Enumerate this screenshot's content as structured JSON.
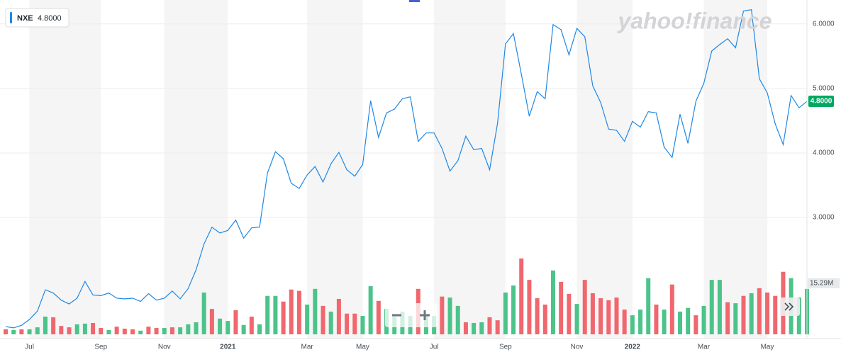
{
  "chart_data": {
    "type": "line",
    "watermark": "yahoo!finance",
    "categories": [
      null,
      null,
      null,
      "Jul",
      null,
      null,
      null,
      null,
      null,
      null,
      null,
      null,
      "Sep",
      null,
      null,
      null,
      null,
      null,
      null,
      null,
      "Nov",
      null,
      null,
      null,
      null,
      null,
      null,
      null,
      "2021",
      null,
      null,
      null,
      null,
      null,
      null,
      null,
      null,
      null,
      "Mar",
      null,
      null,
      null,
      null,
      null,
      null,
      "May",
      null,
      null,
      null,
      null,
      null,
      null,
      null,
      null,
      "Jul",
      null,
      null,
      null,
      null,
      null,
      null,
      null,
      null,
      "Sep",
      null,
      null,
      null,
      null,
      null,
      null,
      null,
      null,
      "Nov",
      null,
      null,
      null,
      null,
      null,
      null,
      "2022",
      null,
      null,
      null,
      null,
      null,
      null,
      null,
      null,
      "Mar",
      null,
      null,
      null,
      null,
      null,
      null,
      null,
      "May",
      null,
      null,
      null,
      null,
      null
    ],
    "series": [
      {
        "name": "NXE",
        "color": "#1e88e5",
        "values": [
          1.31,
          1.29,
          1.33,
          1.42,
          1.55,
          1.88,
          1.83,
          1.72,
          1.66,
          1.75,
          2.01,
          1.8,
          1.79,
          1.83,
          1.75,
          1.74,
          1.75,
          1.7,
          1.82,
          1.72,
          1.75,
          1.86,
          1.74,
          1.9,
          2.19,
          2.59,
          2.85,
          2.76,
          2.8,
          2.96,
          2.68,
          2.84,
          2.85,
          3.69,
          4.02,
          3.91,
          3.53,
          3.45,
          3.66,
          3.79,
          3.55,
          3.83,
          4.01,
          3.74,
          3.64,
          3.82,
          4.81,
          4.24,
          4.62,
          4.68,
          4.84,
          4.87,
          4.18,
          4.31,
          4.31,
          4.07,
          3.72,
          3.88,
          4.26,
          4.05,
          4.07,
          3.74,
          4.46,
          5.69,
          5.85,
          5.22,
          4.57,
          4.95,
          4.84,
          5.99,
          5.91,
          5.52,
          5.93,
          5.8,
          5.04,
          4.78,
          4.37,
          4.35,
          4.18,
          4.49,
          4.4,
          4.64,
          4.62,
          4.09,
          3.93,
          4.6,
          4.15,
          4.8,
          5.08,
          5.58,
          5.68,
          5.77,
          5.63,
          6.2,
          6.22,
          5.15,
          4.93,
          4.45,
          4.13,
          4.89,
          4.7,
          4.8
        ]
      },
      {
        "type": "bar",
        "axis": "y2",
        "values": [
          1.5,
          1.3,
          1.5,
          1.5,
          2.1,
          5.3,
          5.1,
          2.5,
          2.1,
          3.0,
          3.2,
          3.4,
          1.9,
          1.3,
          2.3,
          1.7,
          1.5,
          1.1,
          2.3,
          1.9,
          1.9,
          2.1,
          2.1,
          3.0,
          3.6,
          12.5,
          7.6,
          4.7,
          4.0,
          7.2,
          2.8,
          5.3,
          3.0,
          11.5,
          11.5,
          9.8,
          13.4,
          13.0,
          8.9,
          13.6,
          8.5,
          6.8,
          10.6,
          6.2,
          6.2,
          5.5,
          14.4,
          10.0,
          7.6,
          5.3,
          6.8,
          5.5,
          13.6,
          5.5,
          5.5,
          11.3,
          11.0,
          8.5,
          3.6,
          3.4,
          3.6,
          5.1,
          4.2,
          12.5,
          14.6,
          22.7,
          16.3,
          10.8,
          8.9,
          19.1,
          15.7,
          12.1,
          9.1,
          16.3,
          12.3,
          10.8,
          10.2,
          11.0,
          7.4,
          5.7,
          7.4,
          16.8,
          8.9,
          7.4,
          14.9,
          6.8,
          7.9,
          5.7,
          8.5,
          16.3,
          16.3,
          9.6,
          9.3,
          11.5,
          12.3,
          13.8,
          12.5,
          11.5,
          18.7,
          16.8,
          11.0,
          13.6
        ],
        "colors": [
          "#f0676e",
          "#4cc38a",
          "#f0676e",
          "#4cc38a",
          "#4cc38a",
          "#4cc38a",
          "#f0676e",
          "#f0676e",
          "#f0676e",
          "#4cc38a",
          "#4cc38a",
          "#f0676e",
          "#f0676e",
          "#4cc38a",
          "#f0676e",
          "#f0676e",
          "#f0676e",
          "#4cc38a",
          "#f0676e",
          "#f0676e",
          "#4cc38a",
          "#f0676e",
          "#4cc38a",
          "#4cc38a",
          "#4cc38a",
          "#4cc38a",
          "#f0676e",
          "#4cc38a",
          "#4cc38a",
          "#f0676e",
          "#4cc38a",
          "#f0676e",
          "#4cc38a",
          "#4cc38a",
          "#4cc38a",
          "#f0676e",
          "#f0676e",
          "#f0676e",
          "#4cc38a",
          "#4cc38a",
          "#f0676e",
          "#4cc38a",
          "#f0676e",
          "#f0676e",
          "#f0676e",
          "#4cc38a",
          "#4cc38a",
          "#f0676e",
          "#4cc38a",
          "#4cc38a",
          "#4cc38a",
          "#4cc38a",
          "#f0676e",
          "#4cc38a",
          "#4cc38a",
          "#f0676e",
          "#4cc38a",
          "#4cc38a",
          "#f0676e",
          "#4cc38a",
          "#4cc38a",
          "#f0676e",
          "#f0676e",
          "#4cc38a",
          "#4cc38a",
          "#f0676e",
          "#f0676e",
          "#f0676e",
          "#f0676e",
          "#4cc38a",
          "#f0676e",
          "#f0676e",
          "#4cc38a",
          "#f0676e",
          "#f0676e",
          "#f0676e",
          "#f0676e",
          "#f0676e",
          "#f0676e",
          "#4cc38a",
          "#4cc38a",
          "#4cc38a",
          "#f0676e",
          "#4cc38a",
          "#f0676e",
          "#4cc38a",
          "#4cc38a",
          "#f0676e",
          "#4cc38a",
          "#4cc38a",
          "#4cc38a",
          "#f0676e",
          "#4cc38a",
          "#f0676e",
          "#4cc38a",
          "#f0676e",
          "#f0676e",
          "#f0676e",
          "#f0676e",
          "#4cc38a",
          "#4cc38a",
          "#4cc38a"
        ]
      }
    ],
    "current_price": {
      "value": 4.8,
      "label": "4.8000"
    },
    "ylim": [
      1.19,
      6.37
    ],
    "yticks": [
      {
        "value": 3,
        "label": "3.0000"
      },
      {
        "value": 4,
        "label": "4.0000"
      },
      {
        "value": 5,
        "label": "5.0000"
      },
      {
        "value": 6,
        "label": "6.0000"
      }
    ],
    "y2lim": [
      0,
      100
    ],
    "y2ticks": [
      {
        "value": 15.29,
        "label": "15.29M"
      }
    ],
    "grid": true
  }
}
